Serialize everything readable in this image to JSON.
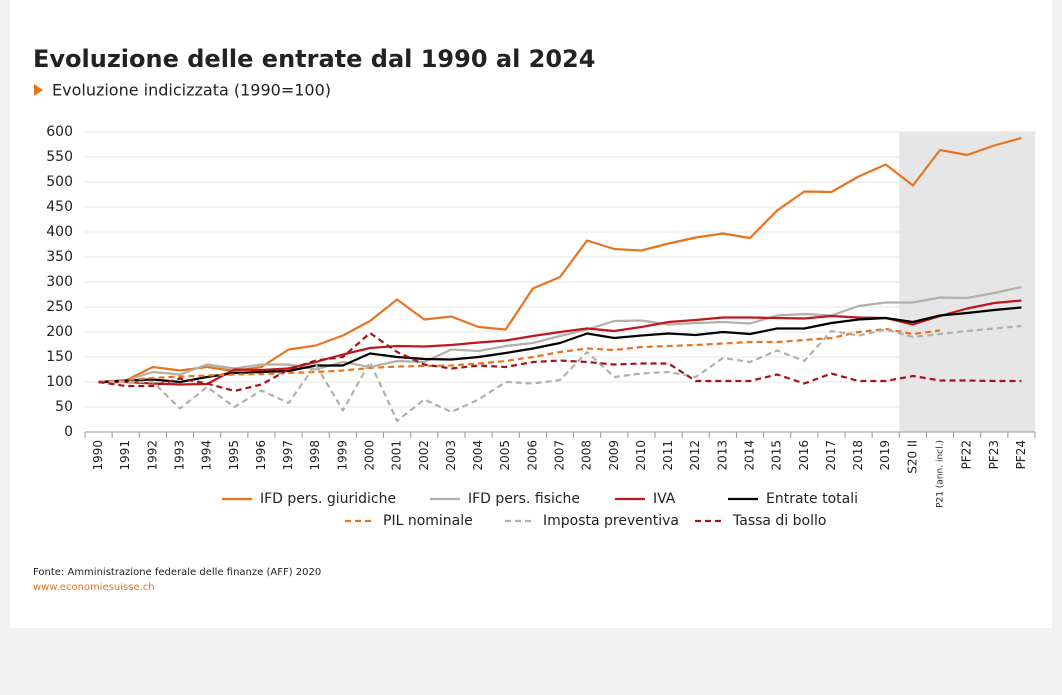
{
  "chart_data": {
    "type": "line",
    "title": "Evoluzione delle entrate dal 1990 al 2024",
    "subtitle": "Evoluzione indicizzata (1990=100)",
    "source": "Fonte: Amministrazione federale delle finanze (AFF) 2020",
    "url": "www.economiesuisse.ch",
    "categories": [
      "1990",
      "1991",
      "1992",
      "1993",
      "1994",
      "1995",
      "1996",
      "1997",
      "1998",
      "1999",
      "2000",
      "2001",
      "2002",
      "2003",
      "2004",
      "2005",
      "2006",
      "2007",
      "2008",
      "2009",
      "2010",
      "2011",
      "2012",
      "2013",
      "2014",
      "2015",
      "2016",
      "2017",
      "2018",
      "2019",
      "S20 II",
      "P21 (ann. incl.)",
      "PF22",
      "PF23",
      "PF24"
    ],
    "shade_from": "S20 II",
    "ylim": [
      0,
      600
    ],
    "yticks": [
      0,
      50,
      100,
      150,
      200,
      250,
      300,
      350,
      400,
      450,
      500,
      550,
      600
    ],
    "grid": true,
    "series": [
      {
        "name": "IFD pers. giuridiche",
        "color": "#e8731e",
        "dashed": false,
        "values": [
          100,
          103,
          130,
          123,
          130,
          122,
          130,
          165,
          173,
          193,
          222,
          265,
          225,
          231,
          210,
          205,
          287,
          310,
          383,
          366,
          363,
          377,
          389,
          397,
          388,
          443,
          481,
          480,
          511,
          535,
          493,
          564,
          554,
          573,
          588
        ]
      },
      {
        "name": "IFD pers. fisiche",
        "color": "#b1b1a8",
        "dashed": false,
        "values": [
          100,
          103,
          120,
          115,
          135,
          127,
          135,
          135,
          125,
          140,
          130,
          142,
          140,
          165,
          162,
          172,
          178,
          192,
          205,
          222,
          223,
          215,
          218,
          220,
          217,
          233,
          236,
          233,
          252,
          259,
          259,
          269,
          268,
          278,
          290
        ]
      },
      {
        "name": "IVA",
        "color": "#c0161c",
        "dashed": false,
        "values": [
          100,
          100,
          97,
          95,
          96,
          125,
          124,
          127,
          140,
          155,
          168,
          172,
          171,
          174,
          179,
          183,
          192,
          200,
          207,
          202,
          210,
          220,
          224,
          229,
          229,
          228,
          227,
          232,
          229,
          228,
          215,
          232,
          247,
          258,
          263
        ]
      },
      {
        "name": "Entrate totali",
        "color": "#000000",
        "dashed": false,
        "values": [
          100,
          103,
          105,
          100,
          110,
          118,
          120,
          122,
          133,
          133,
          157,
          150,
          146,
          145,
          150,
          158,
          167,
          178,
          197,
          188,
          193,
          197,
          194,
          200,
          196,
          207,
          207,
          218,
          225,
          228,
          220,
          233,
          238,
          244,
          249
        ]
      },
      {
        "name": "PIL nominale",
        "color": "#e8731e",
        "dashed": true,
        "values": [
          100,
          104,
          108,
          111,
          113,
          115,
          116,
          118,
          120,
          123,
          128,
          131,
          132,
          133,
          137,
          142,
          150,
          160,
          167,
          164,
          170,
          172,
          174,
          177,
          180,
          180,
          184,
          188,
          200,
          206,
          196,
          203,
          null,
          null,
          null
        ]
      },
      {
        "name": "Imposta preventiva",
        "color": "#b1b1a8",
        "dashed": true,
        "values": [
          100,
          100,
          100,
          47,
          90,
          50,
          83,
          58,
          135,
          43,
          140,
          22,
          65,
          40,
          65,
          100,
          97,
          104,
          160,
          110,
          117,
          120,
          110,
          148,
          140,
          163,
          142,
          202,
          193,
          205,
          190,
          196,
          202,
          207,
          212
        ]
      },
      {
        "name": "Tassa di bollo",
        "color": "#a3131a",
        "dashed": true,
        "values": [
          100,
          92,
          92,
          107,
          97,
          82,
          95,
          125,
          143,
          150,
          198,
          160,
          135,
          127,
          133,
          130,
          140,
          143,
          140,
          135,
          137,
          137,
          102,
          102,
          102,
          115,
          97,
          117,
          102,
          102,
          112,
          103,
          103,
          102,
          102
        ]
      }
    ]
  }
}
